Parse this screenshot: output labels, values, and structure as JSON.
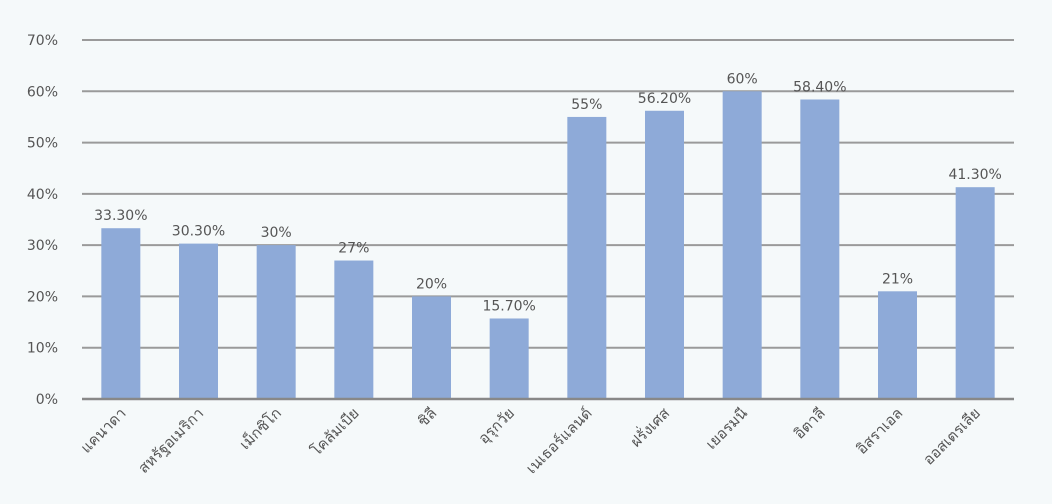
{
  "chart_data": {
    "type": "bar",
    "categories": [
      "แคนาดา",
      "สหรัฐอเมริกา",
      "เม็กซิโก",
      "โคลัมเบีย",
      "ชิลี",
      "อุรุกวัย",
      "เนเธอร์แลนด์",
      "ฝรั่งเศส",
      "เยอรมนี",
      "อิตาลี",
      "อิสราเอล",
      "ออสเตรเลีย"
    ],
    "values": [
      33.3,
      30.3,
      30,
      27,
      20,
      15.7,
      55,
      56.2,
      60,
      58.4,
      21,
      41.3
    ],
    "data_labels": [
      "33.30%",
      "30.30%",
      "30%",
      "27%",
      "20%",
      "15.70%",
      "55%",
      "56.20%",
      "60%",
      "58.40%",
      "21%",
      "41.30%"
    ],
    "ylim": [
      0,
      70
    ],
    "yticks": [
      "0%",
      "10%",
      "20%",
      "30%",
      "40%",
      "50%",
      "60%",
      "70%"
    ],
    "grid": true,
    "colors": {
      "bar": "#8eaad8",
      "grid": "#9a9a9a",
      "axis": "#888888",
      "text": "#555555",
      "background": "#f5f9fa"
    }
  }
}
